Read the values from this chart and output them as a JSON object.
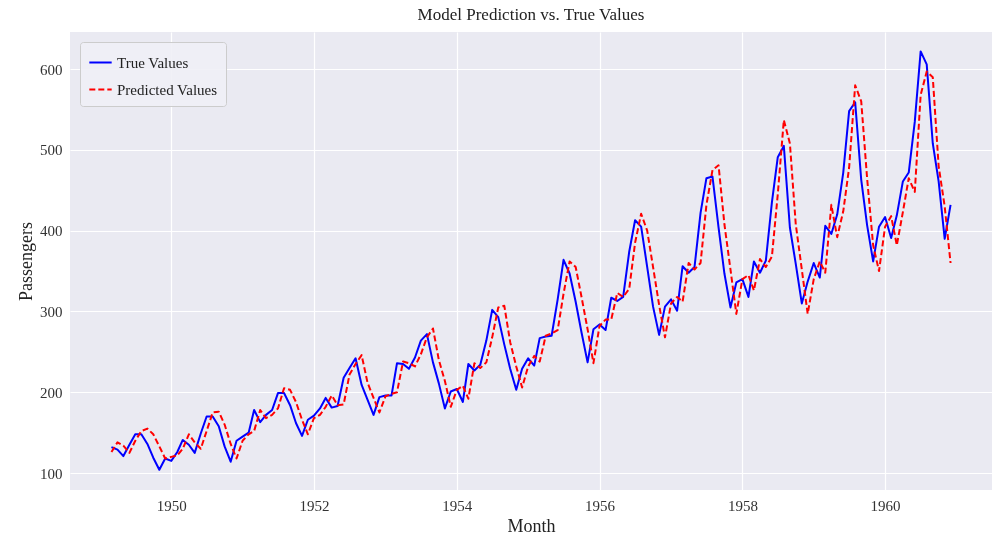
{
  "chart_data": {
    "type": "line",
    "title": "Model Prediction vs. True Values",
    "xlabel": "Month",
    "ylabel": "Passengers",
    "x": [
      "1949-03",
      "1949-04",
      "1949-05",
      "1949-06",
      "1949-07",
      "1949-08",
      "1949-09",
      "1949-10",
      "1949-11",
      "1949-12",
      "1950-01",
      "1950-02",
      "1950-03",
      "1950-04",
      "1950-05",
      "1950-06",
      "1950-07",
      "1950-08",
      "1950-09",
      "1950-10",
      "1950-11",
      "1950-12",
      "1951-01",
      "1951-02",
      "1951-03",
      "1951-04",
      "1951-05",
      "1951-06",
      "1951-07",
      "1951-08",
      "1951-09",
      "1951-10",
      "1951-11",
      "1951-12",
      "1952-01",
      "1952-02",
      "1952-03",
      "1952-04",
      "1952-05",
      "1952-06",
      "1952-07",
      "1952-08",
      "1952-09",
      "1952-10",
      "1952-11",
      "1952-12",
      "1953-01",
      "1953-02",
      "1953-03",
      "1953-04",
      "1953-05",
      "1953-06",
      "1953-07",
      "1953-08",
      "1953-09",
      "1953-10",
      "1953-11",
      "1953-12",
      "1954-01",
      "1954-02",
      "1954-03",
      "1954-04",
      "1954-05",
      "1954-06",
      "1954-07",
      "1954-08",
      "1954-09",
      "1954-10",
      "1954-11",
      "1954-12",
      "1955-01",
      "1955-02",
      "1955-03",
      "1955-04",
      "1955-05",
      "1955-06",
      "1955-07",
      "1955-08",
      "1955-09",
      "1955-10",
      "1955-11",
      "1955-12",
      "1956-01",
      "1956-02",
      "1956-03",
      "1956-04",
      "1956-05",
      "1956-06",
      "1956-07",
      "1956-08",
      "1956-09",
      "1956-10",
      "1956-11",
      "1956-12",
      "1957-01",
      "1957-02",
      "1957-03",
      "1957-04",
      "1957-05",
      "1957-06",
      "1957-07",
      "1957-08",
      "1957-09",
      "1957-10",
      "1957-11",
      "1957-12",
      "1958-01",
      "1958-02",
      "1958-03",
      "1958-04",
      "1958-05",
      "1958-06",
      "1958-07",
      "1958-08",
      "1958-09",
      "1958-10",
      "1958-11",
      "1958-12",
      "1959-01",
      "1959-02",
      "1959-03",
      "1959-04",
      "1959-05",
      "1959-06",
      "1959-07",
      "1959-08",
      "1959-09",
      "1959-10",
      "1959-11",
      "1959-12",
      "1960-01",
      "1960-02",
      "1960-03",
      "1960-04",
      "1960-05",
      "1960-06",
      "1960-07",
      "1960-08",
      "1960-09",
      "1960-10",
      "1960-11",
      "1960-12"
    ],
    "series": [
      {
        "name": "True Values",
        "color": "#0000ff",
        "line_style": "solid",
        "values": [
          132,
          129,
          121,
          135,
          148,
          148,
          136,
          119,
          104,
          118,
          115,
          126,
          141,
          135,
          125,
          149,
          170,
          170,
          158,
          133,
          114,
          140,
          145,
          150,
          178,
          163,
          172,
          178,
          199,
          199,
          184,
          162,
          146,
          166,
          171,
          180,
          193,
          181,
          183,
          218,
          230,
          242,
          209,
          191,
          172,
          194,
          196,
          196,
          236,
          235,
          229,
          243,
          264,
          272,
          237,
          211,
          180,
          201,
          204,
          188,
          235,
          227,
          234,
          264,
          302,
          293,
          259,
          229,
          203,
          229,
          242,
          233,
          267,
          269,
          270,
          315,
          364,
          347,
          312,
          274,
          237,
          278,
          284,
          277,
          317,
          313,
          318,
          374,
          413,
          405,
          355,
          306,
          271,
          306,
          315,
          301,
          356,
          348,
          355,
          422,
          465,
          467,
          404,
          347,
          305,
          336,
          340,
          318,
          362,
          348,
          363,
          435,
          491,
          505,
          404,
          359,
          310,
          337,
          360,
          342,
          406,
          396,
          420,
          472,
          548,
          559,
          463,
          407,
          362,
          405,
          417,
          391,
          419,
          461,
          472,
          535,
          622,
          606,
          508,
          461,
          390,
          432
        ]
      },
      {
        "name": "Predicted Values",
        "color": "#ff0000",
        "line_style": "dashed",
        "values": [
          126,
          138,
          134,
          125,
          140,
          152,
          155,
          148,
          133,
          118,
          120,
          122,
          130,
          148,
          138,
          130,
          152,
          175,
          176,
          160,
          136,
          118,
          140,
          148,
          152,
          178,
          168,
          172,
          180,
          205,
          203,
          188,
          166,
          148,
          168,
          172,
          182,
          196,
          184,
          185,
          222,
          235,
          246,
          212,
          193,
          175,
          195,
          198,
          200,
          238,
          236,
          232,
          247,
          268,
          279,
          240,
          214,
          182,
          203,
          208,
          192,
          236,
          230,
          237,
          268,
          305,
          307,
          262,
          232,
          206,
          232,
          245,
          238,
          270,
          273,
          277,
          322,
          362,
          355,
          318,
          278,
          236,
          282,
          290,
          290,
          323,
          318,
          328,
          385,
          421,
          400,
          355,
          308,
          268,
          310,
          318,
          312,
          360,
          352,
          360,
          432,
          475,
          481,
          408,
          352,
          297,
          340,
          345,
          326,
          365,
          355,
          368,
          445,
          537,
          508,
          408,
          352,
          297,
          340,
          362,
          348,
          432,
          392,
          424,
          478,
          580,
          560,
          465,
          382,
          350,
          405,
          418,
          382,
          423,
          465,
          448,
          568,
          597,
          590,
          480,
          430,
          360
        ]
      }
    ],
    "xlim": [
      "1948-08",
      "1961-07"
    ],
    "xticks": [
      "1950",
      "1952",
      "1954",
      "1956",
      "1958",
      "1960"
    ],
    "ylim": [
      79,
      646
    ],
    "yticks": [
      100,
      200,
      300,
      400,
      500,
      600
    ],
    "grid": true,
    "legend": "top left",
    "marker": "none"
  }
}
